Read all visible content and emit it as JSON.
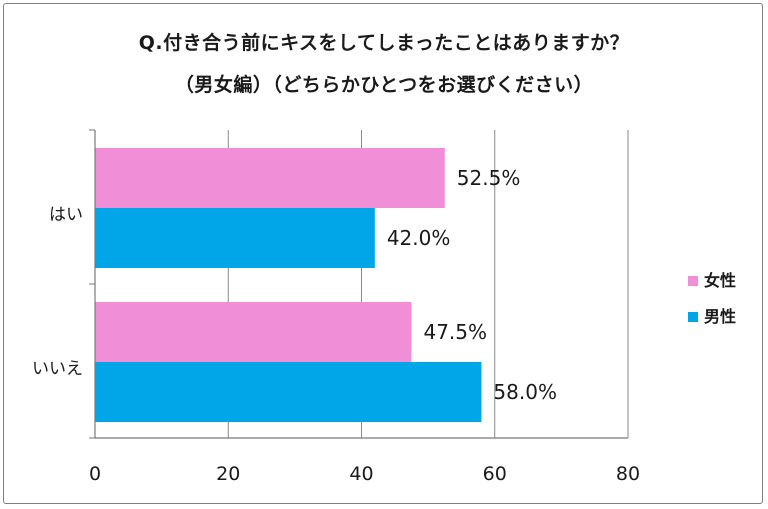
{
  "chart_data": {
    "type": "bar",
    "orientation": "horizontal",
    "title": "Q.付き合う前にキスをしてしまったことはありますか？",
    "subtitle": "（男女編）（どちらかひとつをお選びください）",
    "categories": [
      "はい",
      "いいえ"
    ],
    "series": [
      {
        "name": "女性",
        "values": [
          52.5,
          47.5
        ],
        "labels": [
          "52.5%",
          "47.5%"
        ],
        "color": "#f08fd8"
      },
      {
        "name": "男性",
        "values": [
          42.0,
          58.0
        ],
        "labels": [
          "42.0%",
          "58.0%"
        ],
        "color": "#00a6e8"
      }
    ],
    "xlim": [
      0,
      80
    ],
    "xticks": [
      0,
      20,
      40,
      60,
      80
    ],
    "grid": true,
    "legend_position": "right"
  }
}
